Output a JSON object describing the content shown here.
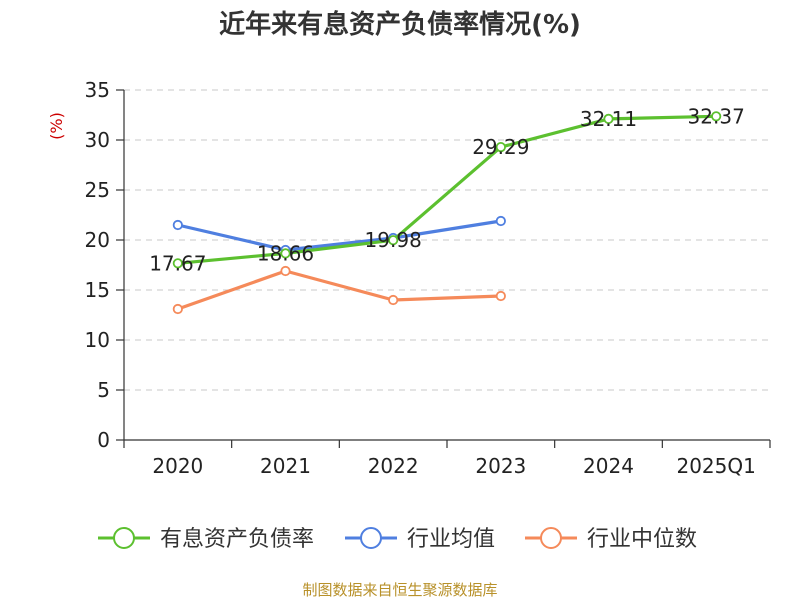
{
  "chart_data": {
    "type": "line",
    "title": "近年来有息资产负债率情况(%)",
    "ylabel": "(%)",
    "xlabel": "",
    "categories": [
      "2020",
      "2021",
      "2022",
      "2023",
      "2024",
      "2025Q1"
    ],
    "ylim": [
      0,
      35
    ],
    "yticks": [
      "0",
      "5",
      "10",
      "15",
      "20",
      "25",
      "30",
      "35"
    ],
    "grid": true,
    "legend_position": "bottom",
    "series": [
      {
        "name": "有息资产负债率",
        "color": "#5cc02f",
        "values": [
          17.67,
          18.66,
          19.98,
          29.29,
          32.11,
          32.37
        ],
        "labels": [
          "17.67",
          "18.66",
          "19.98",
          "29.29",
          "32.11",
          "32.37"
        ]
      },
      {
        "name": "行业均值",
        "color": "#4f7fe0",
        "values": [
          21.5,
          19.0,
          20.2,
          21.9,
          null,
          null
        ]
      },
      {
        "name": "行业中位数",
        "color": "#f58a5a",
        "values": [
          13.1,
          16.9,
          14.0,
          14.4,
          null,
          null
        ]
      }
    ]
  },
  "footer": {
    "source": "制图数据来自恒生聚源数据库"
  }
}
